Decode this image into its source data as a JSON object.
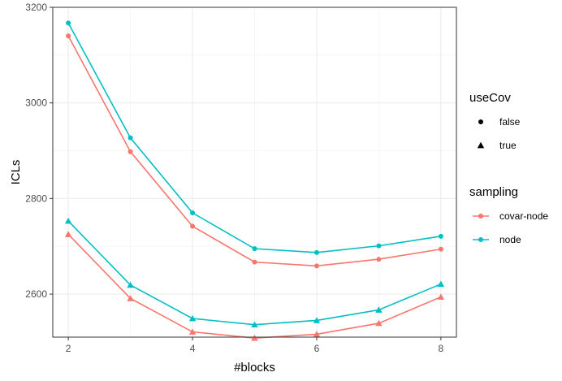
{
  "chart_data": {
    "type": "line",
    "xlabel": "#blocks",
    "ylabel": "ICLs",
    "x": [
      2,
      3,
      4,
      5,
      6,
      7,
      8
    ],
    "xlim": [
      1.75,
      8.25
    ],
    "ylim": [
      2510,
      3200
    ],
    "xticks": [
      2,
      4,
      6,
      8
    ],
    "yticks": [
      2600,
      2800,
      3000,
      3200
    ],
    "grid": true,
    "legend_placement": "right",
    "colors": {
      "covar-node": "#F8766D",
      "node": "#00BFC4"
    },
    "series": [
      {
        "sampling": "covar-node",
        "useCov": "false",
        "values": [
          3140,
          2898,
          2742,
          2667,
          2659,
          2673,
          2694
        ]
      },
      {
        "sampling": "node",
        "useCov": "false",
        "values": [
          3167,
          2927,
          2770,
          2695,
          2687,
          2701,
          2721
        ]
      },
      {
        "sampling": "covar-node",
        "useCov": "true",
        "values": [
          2725,
          2591,
          2521,
          2508,
          2516,
          2539,
          2594
        ]
      },
      {
        "sampling": "node",
        "useCov": "true",
        "values": [
          2753,
          2619,
          2549,
          2536,
          2545,
          2567,
          2621
        ]
      }
    ],
    "legends": [
      {
        "title": "useCov",
        "kind": "shape",
        "entries": [
          {
            "label": "false",
            "shape": "circle"
          },
          {
            "label": "true",
            "shape": "triangle"
          }
        ]
      },
      {
        "title": "sampling",
        "kind": "color",
        "entries": [
          {
            "label": "covar-node",
            "color": "#F8766D"
          },
          {
            "label": "node",
            "color": "#00BFC4"
          }
        ]
      }
    ]
  }
}
